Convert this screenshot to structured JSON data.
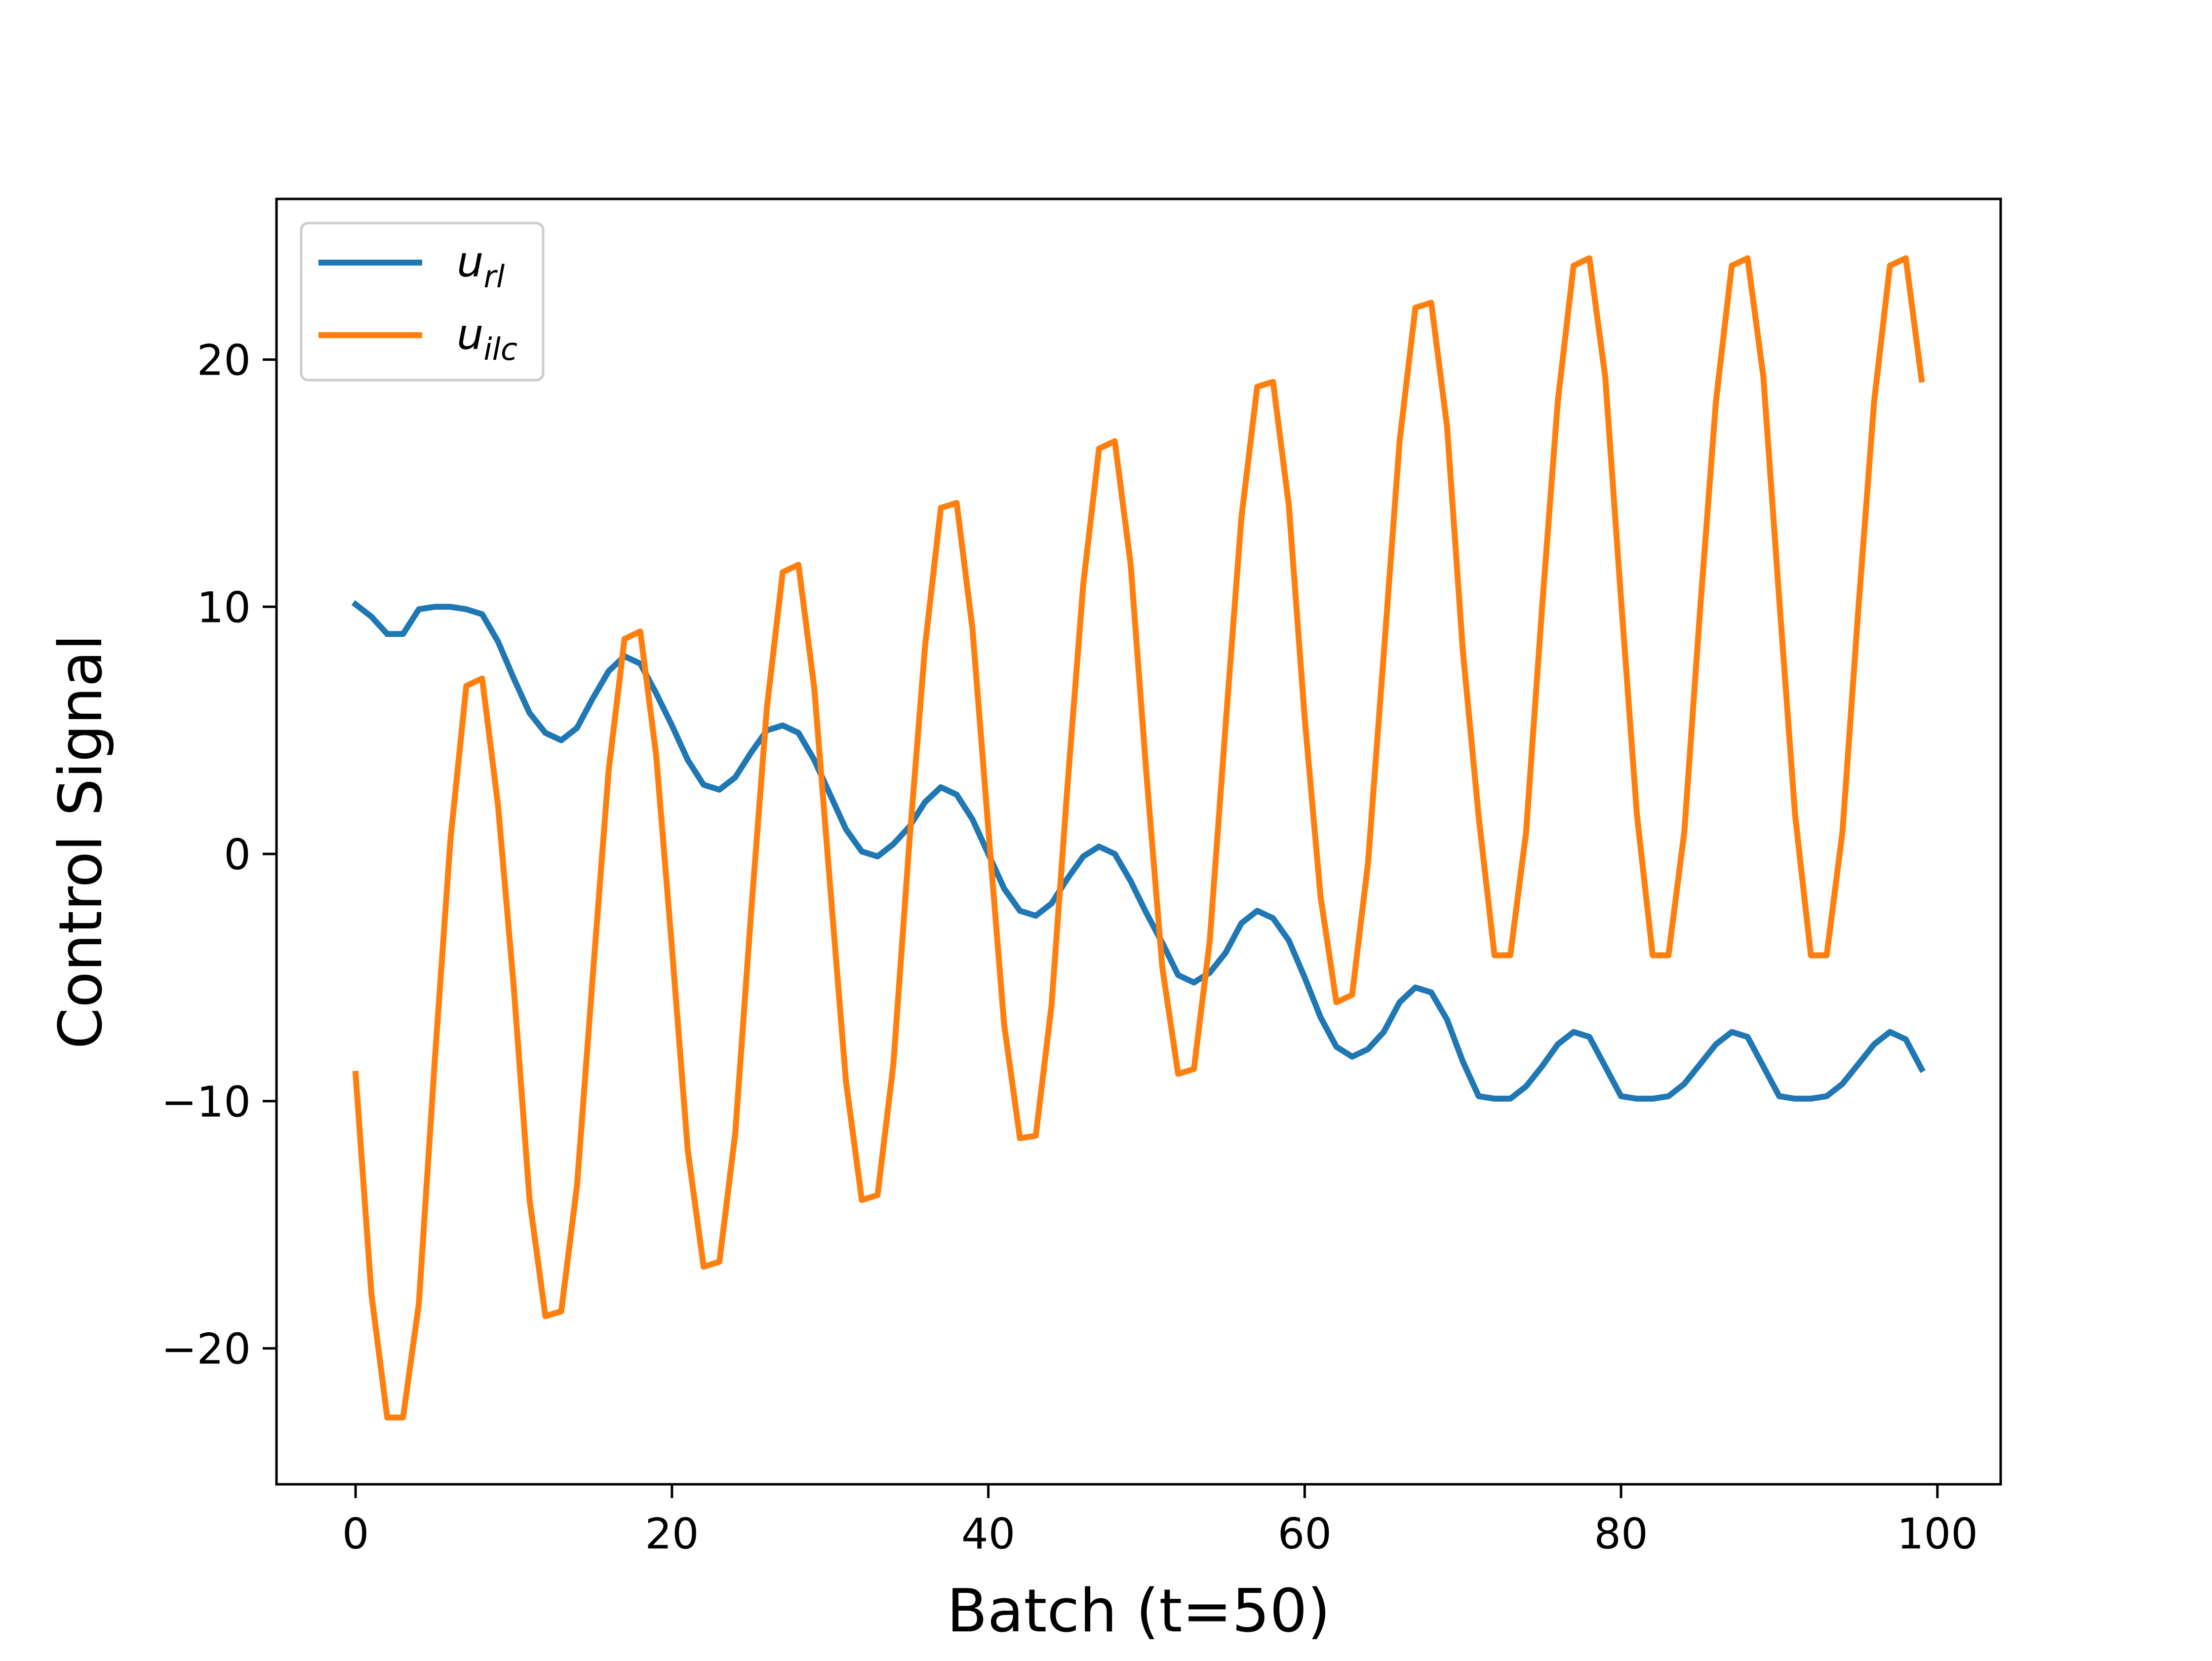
{
  "chart_data": {
    "type": "line",
    "title": "",
    "xlabel": "Batch (t=50)",
    "ylabel": "Control Signal",
    "xlim": [
      -5,
      104
    ],
    "ylim": [
      -25.5,
      26.5
    ],
    "xticks": [
      0,
      20,
      40,
      60,
      80,
      100
    ],
    "yticks": [
      -20,
      -10,
      0,
      10,
      20
    ],
    "xtick_labels": [
      "0",
      "20",
      "40",
      "60",
      "80",
      "100"
    ],
    "ytick_labels": [
      "−20",
      "−10",
      "0",
      "10",
      "20"
    ],
    "grid": false,
    "legend_position": "top-left",
    "series": [
      {
        "name": "u_rl",
        "legend_main": "u",
        "legend_sub": "rl",
        "color": "#1f77b4",
        "x": [
          0,
          1,
          2,
          3,
          4,
          5,
          6,
          7,
          8,
          9,
          10,
          11,
          12,
          13,
          14,
          15,
          16,
          17,
          18,
          19,
          20,
          21,
          22,
          23,
          24,
          25,
          26,
          27,
          28,
          29,
          30,
          31,
          32,
          33,
          34,
          35,
          36,
          37,
          38,
          39,
          40,
          41,
          42,
          43,
          44,
          45,
          46,
          47,
          48,
          49,
          50,
          51,
          52,
          53,
          54,
          55,
          56,
          57,
          58,
          59,
          60,
          61,
          62,
          63,
          64,
          65,
          66,
          67,
          68,
          69,
          70,
          71,
          72,
          73,
          74,
          75,
          76,
          77,
          78,
          79,
          80,
          81,
          82,
          83,
          84,
          85,
          86,
          87,
          88,
          89,
          90,
          91,
          92,
          93,
          94,
          95,
          96,
          97,
          98,
          99
        ],
        "y": [
          10.1,
          9.6,
          8.9,
          8.9,
          9.9,
          10.0,
          10.0,
          9.9,
          9.7,
          8.6,
          7.1,
          5.7,
          4.9,
          4.6,
          5.1,
          6.3,
          7.4,
          8.0,
          7.7,
          6.5,
          5.2,
          3.8,
          2.8,
          2.6,
          3.1,
          4.1,
          5.0,
          5.2,
          4.9,
          3.8,
          2.4,
          1.0,
          0.1,
          -0.1,
          0.4,
          1.1,
          2.1,
          2.7,
          2.4,
          1.4,
          0.0,
          -1.4,
          -2.3,
          -2.5,
          -2.0,
          -1.0,
          -0.1,
          0.3,
          0.0,
          -1.1,
          -2.4,
          -3.6,
          -4.9,
          -5.2,
          -4.8,
          -4.0,
          -2.8,
          -2.3,
          -2.6,
          -3.5,
          -5.0,
          -6.6,
          -7.8,
          -8.2,
          -7.9,
          -7.2,
          -6.0,
          -5.4,
          -5.6,
          -6.7,
          -8.4,
          -9.8,
          -9.9,
          -9.9,
          -9.4,
          -8.6,
          -7.7,
          -7.2,
          -7.4,
          -8.6,
          -9.8,
          -9.9,
          -9.9,
          -9.8,
          -9.3,
          -8.5,
          -7.7,
          -7.2,
          -7.4,
          -8.6,
          -9.8,
          -9.9,
          -9.9,
          -9.8,
          -9.3,
          -8.5,
          -7.7,
          -7.2,
          -7.5,
          -8.7
        ]
      },
      {
        "name": "u_ilc",
        "legend_main": "u",
        "legend_sub": "ilc",
        "color": "#ff7f0e",
        "x": [
          0,
          1,
          2,
          3,
          4,
          5,
          6,
          7,
          8,
          9,
          10,
          11,
          12,
          13,
          14,
          15,
          16,
          17,
          18,
          19,
          20,
          21,
          22,
          23,
          24,
          25,
          26,
          27,
          28,
          29,
          30,
          31,
          32,
          33,
          34,
          35,
          36,
          37,
          38,
          39,
          40,
          41,
          42,
          43,
          44,
          45,
          46,
          47,
          48,
          49,
          50,
          51,
          52,
          53,
          54,
          55,
          56,
          57,
          58,
          59,
          60,
          61,
          62,
          63,
          64,
          65,
          66,
          67,
          68,
          69,
          70,
          71,
          72,
          73,
          74,
          75,
          76,
          77,
          78,
          79,
          80,
          81,
          82,
          83,
          84,
          85,
          86,
          87,
          88,
          89,
          90,
          91,
          92,
          93,
          94,
          95,
          96,
          97,
          98,
          99
        ],
        "y": [
          -8.9,
          -17.8,
          -22.8,
          -22.8,
          -18.2,
          -8.4,
          0.6,
          6.8,
          7.1,
          2.0,
          -5.4,
          -14.0,
          -18.7,
          -18.5,
          -13.4,
          -4.9,
          3.4,
          8.7,
          9.0,
          4.0,
          -3.8,
          -12.0,
          -16.7,
          -16.5,
          -11.3,
          -2.4,
          5.9,
          11.4,
          11.7,
          6.7,
          -1.3,
          -9.2,
          -14.0,
          -13.8,
          -8.5,
          0.4,
          8.4,
          14.0,
          14.2,
          9.1,
          1.0,
          -6.9,
          -11.5,
          -11.4,
          -6.1,
          2.7,
          10.9,
          16.4,
          16.7,
          11.7,
          3.2,
          -4.6,
          -8.9,
          -8.7,
          -3.5,
          5.2,
          13.6,
          18.9,
          19.1,
          14.1,
          5.5,
          -1.7,
          -6.0,
          -5.7,
          -0.4,
          8.1,
          16.7,
          22.1,
          22.3,
          17.3,
          8.2,
          1.5,
          -4.1,
          -4.1,
          0.9,
          9.9,
          18.3,
          23.8,
          24.1,
          19.3,
          10.3,
          1.6,
          -4.1,
          -4.1,
          0.9,
          9.9,
          18.3,
          23.8,
          24.1,
          19.3,
          10.3,
          1.6,
          -4.1,
          -4.1,
          0.9,
          9.9,
          18.3,
          23.8,
          24.1,
          19.2
        ]
      }
    ]
  }
}
